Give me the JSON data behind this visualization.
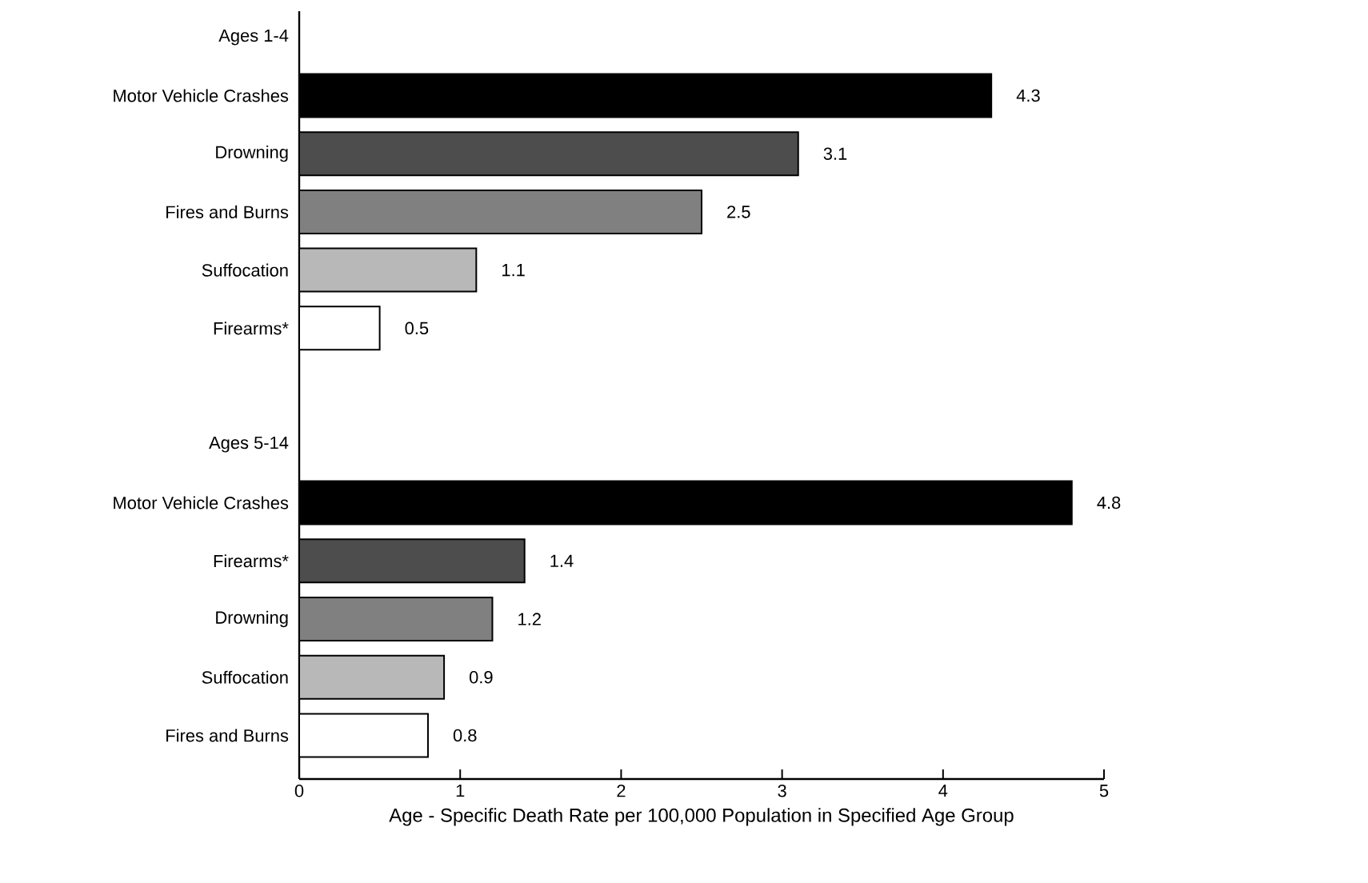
{
  "chart_data": {
    "type": "bar",
    "orientation": "horizontal",
    "categories": [
      "Ages 1-4",
      "Motor Vehicle Crashes",
      "Drowning",
      "Fires and Burns",
      "Suffocation",
      "Firearms*",
      null,
      "Ages 5-14",
      "Motor Vehicle Crashes",
      "Firearms*",
      "Drowning",
      "Suffocation",
      "Fires and Burns"
    ],
    "values": [
      null,
      4.3,
      3.1,
      2.5,
      1.1,
      0.5,
      null,
      null,
      4.8,
      1.4,
      1.2,
      0.9,
      0.8
    ],
    "colors": [
      null,
      "#000000",
      "#4d4d4d",
      "#808080",
      "#b8b8b8",
      "#ffffff",
      null,
      null,
      "#000000",
      "#4d4d4d",
      "#808080",
      "#b8b8b8",
      "#ffffff"
    ],
    "xlabel": "Age - Specific Death Rate per 100,000 Population in Specified Age Group",
    "xlim": [
      0,
      5
    ],
    "xticks": [
      0,
      1,
      2,
      3,
      4,
      5
    ],
    "data_labels": true
  }
}
